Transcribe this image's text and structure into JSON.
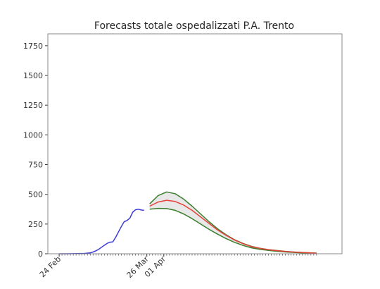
{
  "chart_data": {
    "type": "line",
    "title": "Forecasts totale ospedalizzati P.A. Trento",
    "xlabel": "",
    "ylabel": "",
    "ylim": [
      0,
      1850
    ],
    "yticks": [
      0,
      250,
      500,
      750,
      1000,
      1250,
      1500,
      1750
    ],
    "ytick_labels": [
      "0",
      "250",
      "500",
      "750",
      "1000",
      "1250",
      "1500",
      "1750"
    ],
    "xticks_labeled": [
      {
        "day": 0,
        "label": "24 Feb"
      },
      {
        "day": 31,
        "label": "26 Mar"
      },
      {
        "day": 37,
        "label": "01 Apr"
      }
    ],
    "xlim": [
      -4,
      100
    ],
    "minor_tick_range": [
      0,
      91
    ],
    "grid": false,
    "legend": "none",
    "colors": {
      "observed": "#3b3bd6",
      "forecast": "#e8413a",
      "bounds": "#3a7d2c",
      "band_fill": "#e8e8e8",
      "frame": "#8a8a8a"
    },
    "series": [
      {
        "role": "observed",
        "x": [
          0,
          3,
          6,
          9,
          11,
          12,
          13,
          14,
          15,
          16,
          17,
          18,
          19,
          20,
          21,
          22,
          23,
          24,
          25,
          26,
          27,
          28,
          29,
          30
        ],
        "y": [
          0,
          0,
          1,
          3,
          8,
          15,
          25,
          38,
          55,
          72,
          88,
          97,
          100,
          140,
          185,
          230,
          270,
          280,
          300,
          350,
          370,
          375,
          368,
          365
        ]
      },
      {
        "role": "forecast",
        "x": [
          32,
          35,
          38,
          41,
          44,
          47,
          50,
          53,
          56,
          59,
          62,
          65,
          68,
          71,
          74,
          77,
          80,
          83,
          86,
          89,
          91
        ],
        "y": [
          400,
          435,
          450,
          440,
          410,
          365,
          310,
          255,
          200,
          155,
          115,
          85,
          60,
          45,
          34,
          26,
          19,
          14,
          10,
          7,
          5
        ]
      },
      {
        "role": "upper",
        "x": [
          32,
          35,
          38,
          41,
          44,
          47,
          50,
          53,
          56,
          59,
          62,
          65,
          68,
          71,
          74,
          77,
          80,
          83,
          86,
          89,
          91
        ],
        "y": [
          420,
          490,
          520,
          505,
          460,
          400,
          335,
          270,
          210,
          160,
          118,
          87,
          62,
          46,
          35,
          27,
          20,
          15,
          11,
          8,
          6
        ]
      },
      {
        "role": "lower",
        "x": [
          32,
          35,
          38,
          41,
          44,
          47,
          50,
          53,
          56,
          59,
          62,
          65,
          68,
          71,
          74,
          77,
          80,
          83,
          86,
          89,
          91
        ],
        "y": [
          375,
          382,
          380,
          365,
          335,
          295,
          250,
          205,
          165,
          128,
          96,
          70,
          50,
          37,
          28,
          21,
          15,
          11,
          8,
          6,
          4
        ]
      }
    ]
  }
}
